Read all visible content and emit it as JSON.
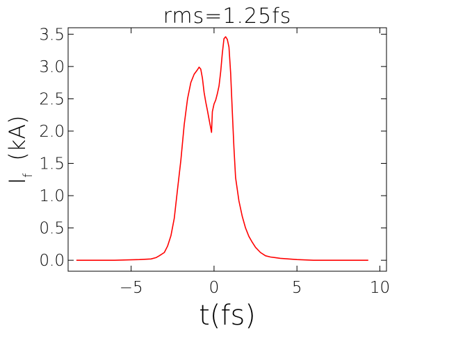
{
  "chart_data": {
    "type": "line",
    "title": "rms=1.25fs",
    "xlabel": "t(fs)",
    "ylabel_main": "I",
    "ylabel_subscript": "f",
    "ylabel_unit": "(kA)",
    "xlim": [
      -8.8,
      10.4
    ],
    "ylim": [
      -0.17,
      3.6
    ],
    "xticks": [
      -5,
      0,
      5,
      10
    ],
    "xtick_labels": [
      "−5",
      "0",
      "5",
      "10"
    ],
    "yticks": [
      0.0,
      0.5,
      1.0,
      1.5,
      2.0,
      2.5,
      3.0,
      3.5
    ],
    "ytick_labels": [
      "0.0",
      "0.5",
      "1.0",
      "1.5",
      "2.0",
      "2.5",
      "3.0",
      "3.5"
    ],
    "grid": false,
    "series": [
      {
        "color": "#ff0000",
        "x": [
          -8.3,
          -6.0,
          -4.5,
          -3.8,
          -3.5,
          -3.3,
          -3.0,
          -2.8,
          -2.6,
          -2.4,
          -2.2,
          -2.0,
          -1.8,
          -1.6,
          -1.4,
          -1.2,
          -1.0,
          -0.9,
          -0.8,
          -0.7,
          -0.6,
          -0.5,
          -0.4,
          -0.3,
          -0.2,
          -0.15,
          -0.1,
          0.0,
          0.1,
          0.2,
          0.3,
          0.4,
          0.5,
          0.6,
          0.7,
          0.8,
          0.9,
          1.0,
          1.1,
          1.2,
          1.3,
          1.5,
          1.7,
          1.9,
          2.1,
          2.3,
          2.5,
          2.8,
          3.1,
          3.4,
          3.7,
          4.0,
          4.5,
          5.0,
          6.0,
          7.5,
          9.3
        ],
        "y": [
          0.0,
          0.0,
          0.01,
          0.02,
          0.04,
          0.07,
          0.12,
          0.22,
          0.38,
          0.65,
          1.1,
          1.55,
          2.1,
          2.5,
          2.75,
          2.88,
          2.95,
          2.99,
          2.96,
          2.82,
          2.6,
          2.45,
          2.32,
          2.18,
          2.05,
          1.98,
          2.3,
          2.42,
          2.48,
          2.58,
          2.7,
          2.92,
          3.2,
          3.43,
          3.46,
          3.42,
          3.3,
          2.9,
          2.3,
          1.75,
          1.28,
          0.92,
          0.68,
          0.5,
          0.37,
          0.28,
          0.2,
          0.12,
          0.07,
          0.05,
          0.04,
          0.03,
          0.02,
          0.01,
          0.0,
          0.0,
          0.0
        ]
      }
    ]
  }
}
